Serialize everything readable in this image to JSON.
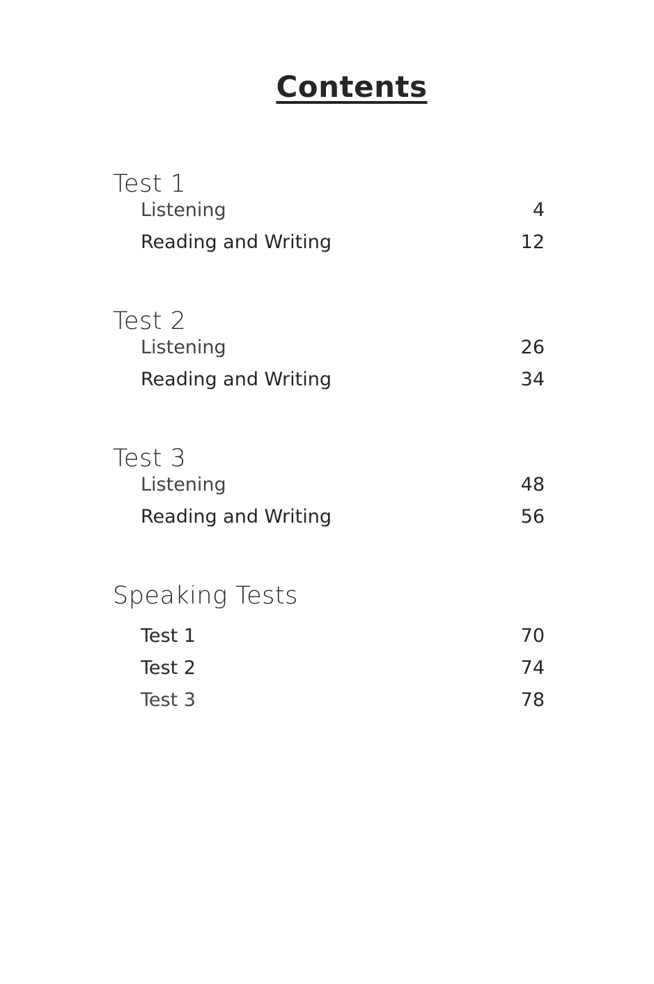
{
  "title": "Contents",
  "sections": [
    {
      "heading": "Test 1",
      "items": [
        {
          "label": "Listening",
          "page": "4"
        },
        {
          "label": "Reading and Writing",
          "page": "12"
        }
      ]
    },
    {
      "heading": "Test 2",
      "items": [
        {
          "label": "Listening",
          "page": "26"
        },
        {
          "label": "Reading and Writing",
          "page": "34"
        }
      ]
    },
    {
      "heading": "Test 3",
      "items": [
        {
          "label": "Listening",
          "page": "48"
        },
        {
          "label": "Reading and Writing",
          "page": "56"
        }
      ]
    },
    {
      "heading": "Speaking Tests",
      "items": [
        {
          "label": "Test 1",
          "page": "70"
        },
        {
          "label": "Test 2",
          "page": "74"
        },
        {
          "label": "Test 3",
          "page": "78"
        }
      ]
    }
  ]
}
